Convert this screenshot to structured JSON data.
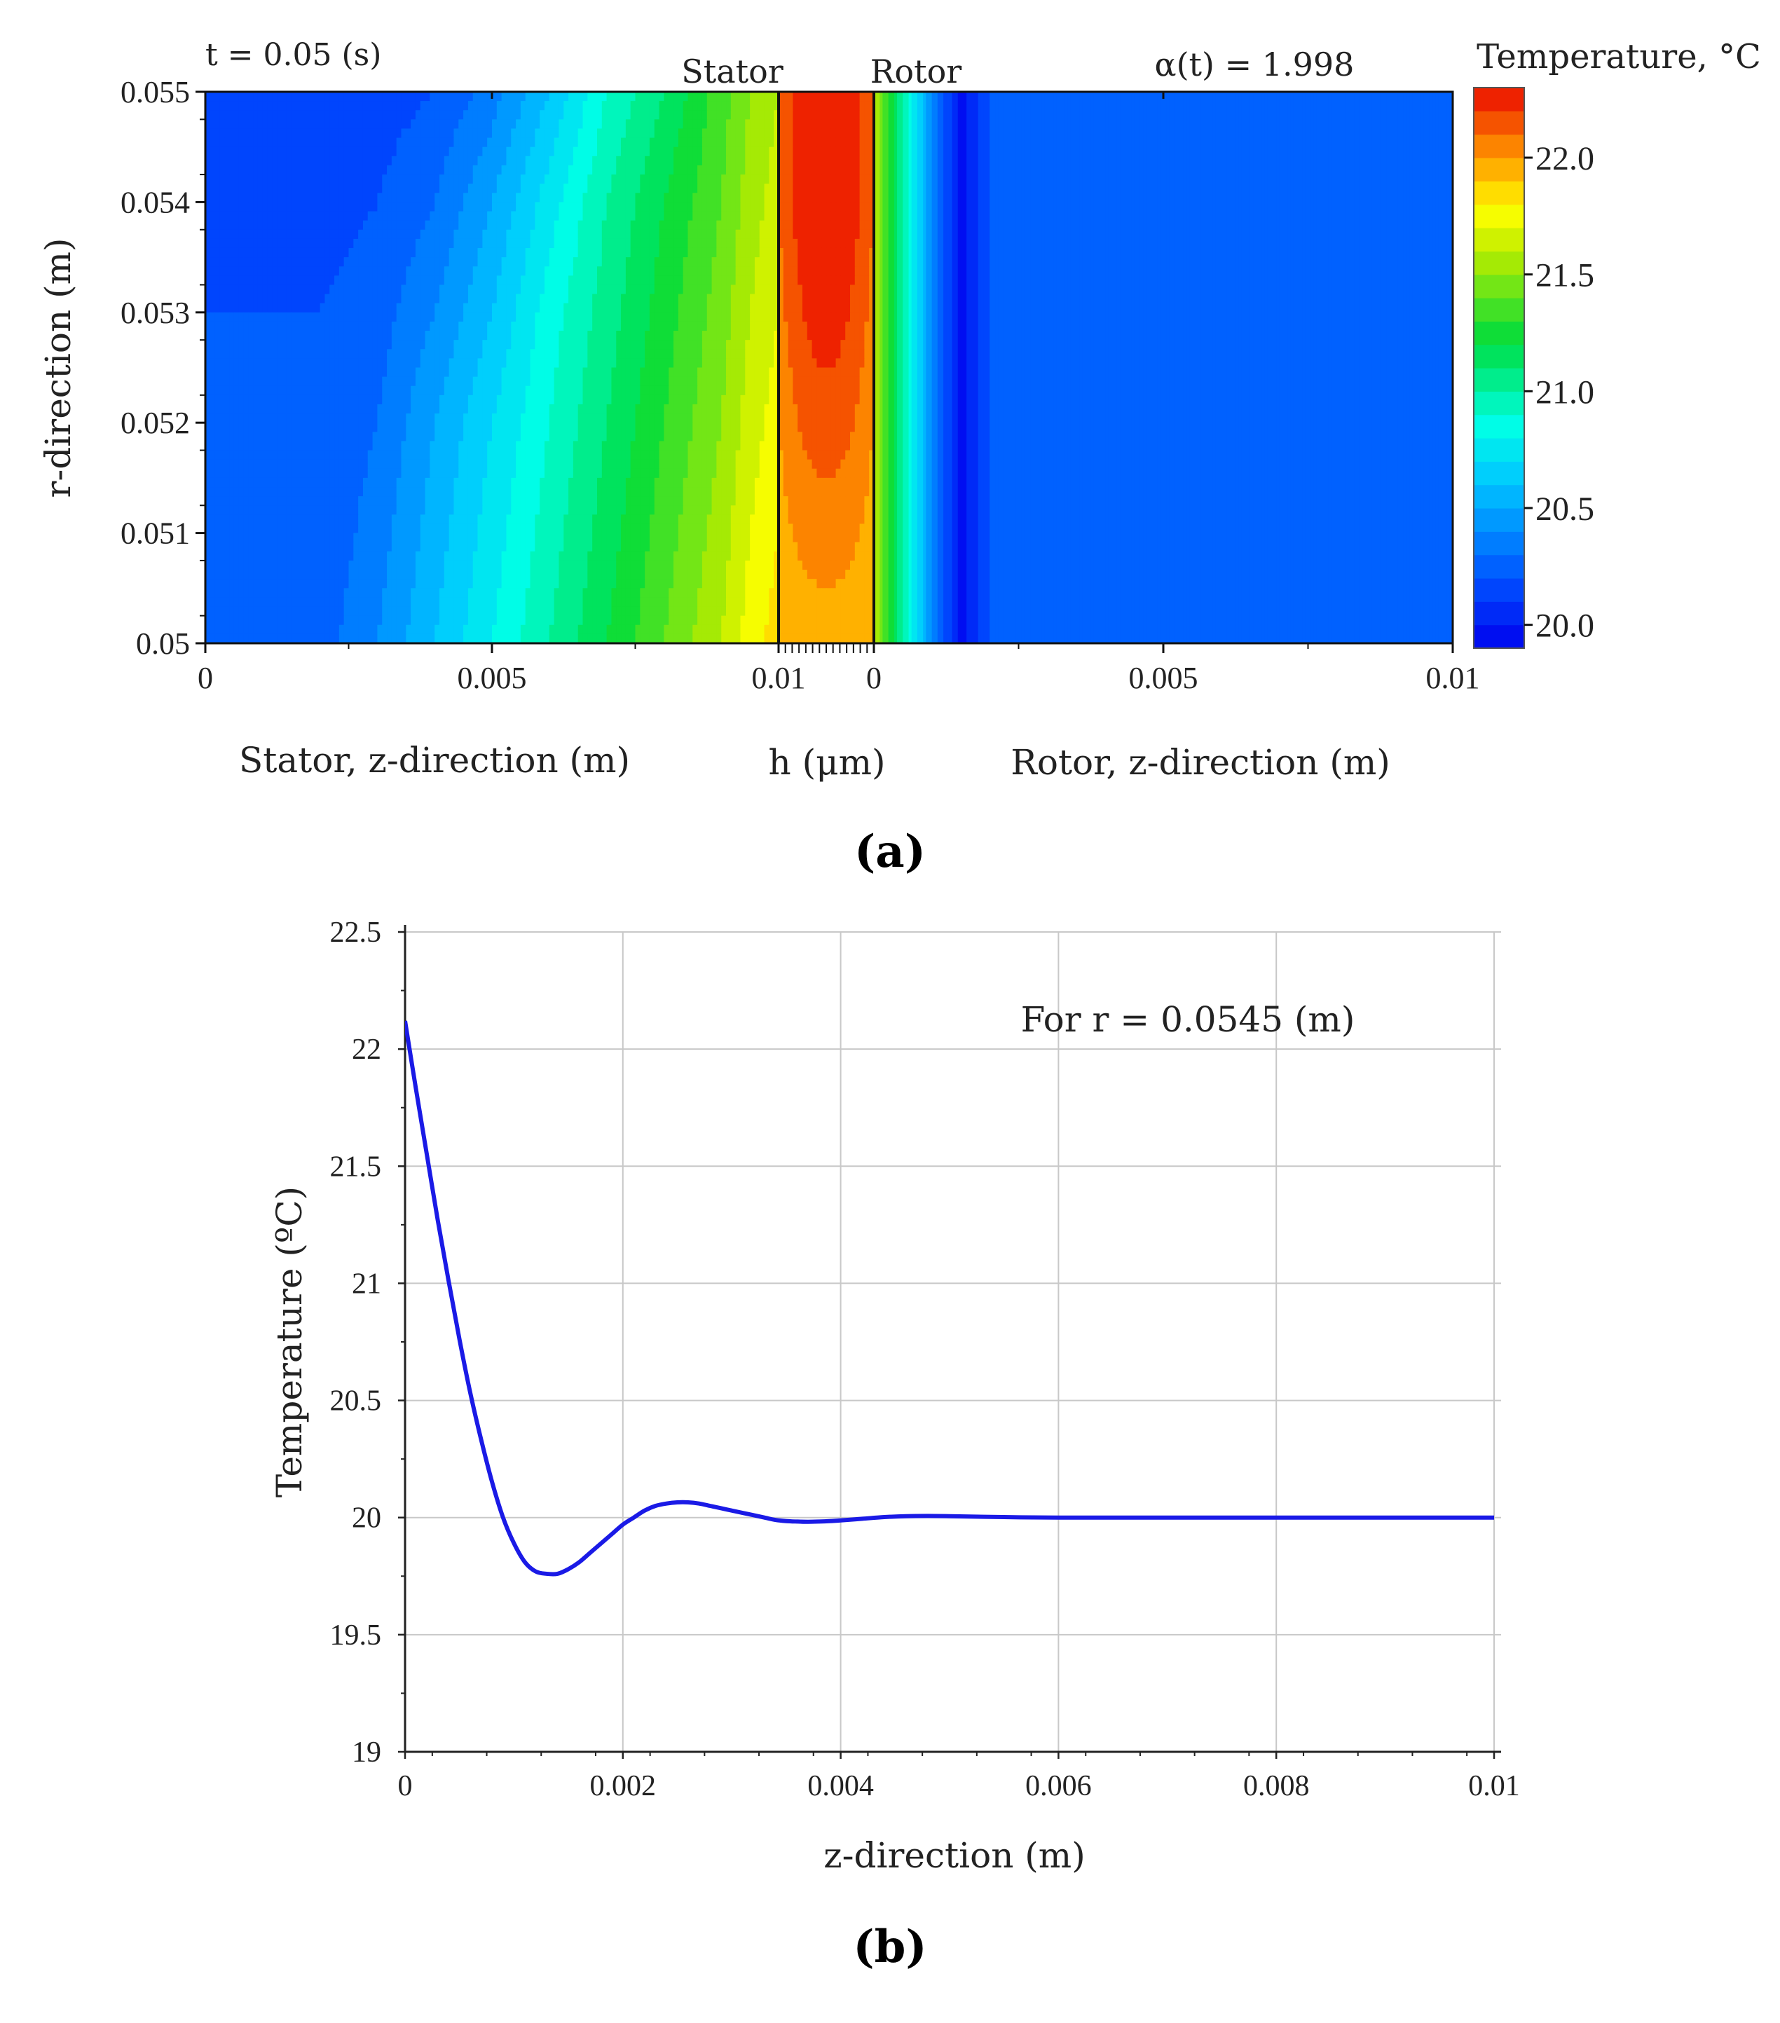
{
  "chart_data": [
    {
      "panel_label": "a",
      "panel_label_text": "(a)",
      "type": "heatmap",
      "annotations": {
        "time": "t = 0.05 (s)",
        "alpha": "α(t) = 1.998",
        "stator": "Stator",
        "rotor": "Rotor"
      },
      "ylabel": "r-direction (m)",
      "xlabels": {
        "stator": "Stator, z-direction (m)",
        "film": "h (μm)",
        "rotor": "Rotor, z-direction (m)"
      },
      "ylim": [
        0.05,
        0.055
      ],
      "y_ticks": [
        "0.05",
        "0.051",
        "0.052",
        "0.053",
        "0.054",
        "0.055"
      ],
      "stator_z_range": [
        0,
        0.01
      ],
      "stator_x_ticks": [
        "0",
        "0.005",
        "0.01"
      ],
      "rotor_z_range": [
        0,
        0.01
      ],
      "rotor_x_ticks": [
        "0",
        "0.005",
        "0.01"
      ],
      "colorbar": {
        "title": "Temperature, °C",
        "range": [
          19.9,
          22.3
        ],
        "ticks": [
          "20.0",
          "20.5",
          "21.0",
          "21.5",
          "22.0"
        ],
        "levels": 24
      },
      "stator_field": {
        "z": [
          0,
          0.001,
          0.002,
          0.003,
          0.004,
          0.005,
          0.006,
          0.007,
          0.008,
          0.009,
          0.0095,
          0.01
        ],
        "r": [
          0.05,
          0.051,
          0.052,
          0.053,
          0.054,
          0.055
        ],
        "temperature": [
          [
            20.2,
            20.2,
            20.25,
            20.4,
            20.6,
            20.8,
            21.0,
            21.2,
            21.4,
            21.6,
            21.75,
            21.85
          ],
          [
            20.2,
            20.2,
            20.22,
            20.35,
            20.55,
            20.75,
            20.95,
            21.15,
            21.35,
            21.55,
            21.7,
            21.8
          ],
          [
            20.2,
            20.2,
            20.2,
            20.3,
            20.5,
            20.7,
            20.9,
            21.1,
            21.3,
            21.5,
            21.65,
            21.75
          ],
          [
            20.2,
            20.2,
            20.2,
            20.25,
            20.4,
            20.6,
            20.85,
            21.05,
            21.25,
            21.45,
            21.6,
            21.7
          ],
          [
            20.1,
            20.1,
            20.15,
            20.2,
            20.3,
            20.5,
            20.75,
            21.0,
            21.2,
            21.4,
            21.55,
            21.65
          ],
          [
            20.1,
            20.1,
            20.1,
            20.15,
            20.2,
            20.35,
            20.6,
            20.9,
            21.1,
            21.35,
            21.5,
            21.6
          ]
        ]
      },
      "film_field": {
        "r": [
          0.05,
          0.051,
          0.052,
          0.053,
          0.054,
          0.055
        ],
        "temperature_edge": [
          21.9,
          21.95,
          22.0,
          22.05,
          22.1,
          22.1
        ],
        "temperature_center": [
          21.95,
          22.05,
          22.15,
          22.25,
          22.3,
          22.3
        ]
      },
      "rotor_field": {
        "z": [
          0,
          0.0005,
          0.001,
          0.0015,
          0.002,
          0.01
        ],
        "temperature": [
          21.6,
          21.0,
          20.4,
          19.95,
          20.2,
          20.2
        ]
      }
    },
    {
      "panel_label": "b",
      "panel_label_text": "(b)",
      "type": "line",
      "annotation": "For r = 0.0545 (m)",
      "xlabel": "z-direction (m)",
      "ylabel": "Temperature (ºC)",
      "xlim": [
        0,
        0.01
      ],
      "ylim": [
        19,
        22.5
      ],
      "x_ticks": [
        "0",
        "0.002",
        "0.004",
        "0.006",
        "0.008",
        "0.01"
      ],
      "y_ticks": [
        "19",
        "19.5",
        "20",
        "20.5",
        "21",
        "21.5",
        "22",
        "22.5"
      ],
      "grid": true,
      "line_color": "#1a1ae6",
      "series": [
        {
          "x": [
            0,
            0.0001,
            0.0002,
            0.0003,
            0.0004,
            0.0005,
            0.0006,
            0.0007,
            0.0008,
            0.0009,
            0.001,
            0.0011,
            0.0012,
            0.0013,
            0.0014,
            0.0015,
            0.0016,
            0.0017,
            0.0018,
            0.0019,
            0.002,
            0.0021,
            0.0022,
            0.0023,
            0.0024,
            0.0025,
            0.0026,
            0.0027,
            0.0028,
            0.0029,
            0.003,
            0.0031,
            0.0032,
            0.0033,
            0.0034,
            0.0035,
            0.0036,
            0.0037,
            0.0038,
            0.0039,
            0.004,
            0.0042,
            0.0044,
            0.0046,
            0.0048,
            0.005,
            0.0055,
            0.006,
            0.007,
            0.008,
            0.009,
            0.01
          ],
          "y": [
            22.12,
            21.83,
            21.55,
            21.27,
            21.01,
            20.76,
            20.53,
            20.33,
            20.15,
            20.0,
            19.89,
            19.81,
            19.77,
            19.76,
            19.76,
            19.78,
            19.81,
            19.85,
            19.89,
            19.93,
            19.97,
            20.0,
            20.03,
            20.05,
            20.06,
            20.065,
            20.065,
            20.06,
            20.05,
            20.04,
            20.03,
            20.02,
            20.01,
            20.0,
            19.99,
            19.985,
            19.983,
            19.982,
            19.983,
            19.985,
            19.988,
            19.995,
            20.002,
            20.006,
            20.007,
            20.006,
            20.002,
            20.0,
            20.0,
            20.0,
            20.0,
            20.0
          ]
        }
      ]
    }
  ]
}
